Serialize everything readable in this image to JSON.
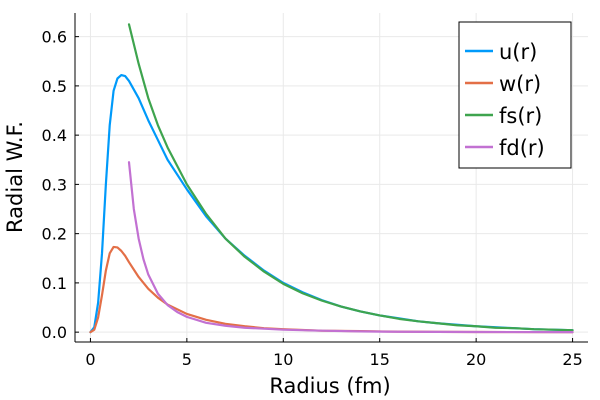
{
  "chart_data": {
    "type": "line",
    "title": "",
    "xlabel": "Radius (fm)",
    "ylabel": "Radial W.F.",
    "xlim": [
      -0.8,
      25.8
    ],
    "ylim": [
      -0.02,
      0.648
    ],
    "xticks": [
      0,
      5,
      10,
      15,
      20,
      25
    ],
    "xtick_labels": [
      "0",
      "5",
      "10",
      "15",
      "20",
      "25"
    ],
    "yticks": [
      0.0,
      0.1,
      0.2,
      0.3,
      0.4,
      0.5,
      0.6
    ],
    "ytick_labels": [
      "0.0",
      "0.1",
      "0.2",
      "0.3",
      "0.4",
      "0.5",
      "0.6"
    ],
    "grid": true,
    "legend_position": "top-right",
    "series": [
      {
        "name": "u(r)",
        "color": "#009AFA",
        "x": [
          0,
          0.2,
          0.4,
          0.6,
          0.8,
          1.0,
          1.2,
          1.4,
          1.6,
          1.8,
          2.0,
          2.5,
          3,
          3.5,
          4,
          5,
          6,
          7,
          8,
          9,
          10,
          11,
          12,
          13,
          14,
          15,
          16,
          17,
          18,
          19,
          20,
          21,
          22,
          23,
          24,
          25
        ],
        "y": [
          0,
          0.01,
          0.06,
          0.16,
          0.3,
          0.42,
          0.49,
          0.515,
          0.522,
          0.52,
          0.51,
          0.475,
          0.43,
          0.39,
          0.35,
          0.29,
          0.235,
          0.19,
          0.155,
          0.125,
          0.1,
          0.081,
          0.065,
          0.052,
          0.042,
          0.034,
          0.028,
          0.022,
          0.018,
          0.015,
          0.012,
          0.01,
          0.008,
          0.006,
          0.005,
          0.004
        ]
      },
      {
        "name": "w(r)",
        "color": "#E36F47",
        "x": [
          0,
          0.2,
          0.4,
          0.6,
          0.8,
          1.0,
          1.2,
          1.4,
          1.6,
          1.8,
          2.0,
          2.5,
          3,
          3.5,
          4,
          5,
          6,
          7,
          8,
          9,
          10,
          12,
          14,
          16,
          18,
          20,
          22,
          25
        ],
        "y": [
          0,
          0.005,
          0.03,
          0.075,
          0.125,
          0.16,
          0.173,
          0.172,
          0.165,
          0.155,
          0.142,
          0.112,
          0.088,
          0.07,
          0.056,
          0.037,
          0.025,
          0.017,
          0.012,
          0.008,
          0.006,
          0.003,
          0.002,
          0.001,
          0.0005,
          0.0003,
          0.0002,
          0.0001
        ]
      },
      {
        "name": "fs(r)",
        "color": "#3EA44E",
        "x": [
          2,
          2.5,
          3,
          3.5,
          4,
          5,
          6,
          7,
          8,
          9,
          10,
          11,
          12,
          13,
          14,
          15,
          16,
          17,
          18,
          19,
          20,
          21,
          22,
          23,
          24,
          25
        ],
        "y": [
          0.625,
          0.545,
          0.475,
          0.42,
          0.375,
          0.3,
          0.24,
          0.19,
          0.153,
          0.123,
          0.098,
          0.079,
          0.064,
          0.052,
          0.042,
          0.034,
          0.027,
          0.022,
          0.018,
          0.014,
          0.012,
          0.009,
          0.008,
          0.006,
          0.005,
          0.004
        ]
      },
      {
        "name": "fd(r)",
        "color": "#C271D2",
        "x": [
          2,
          2.25,
          2.5,
          2.75,
          3,
          3.5,
          4,
          4.5,
          5,
          6,
          7,
          8,
          9,
          10,
          12,
          14,
          16,
          18,
          20,
          22,
          25
        ],
        "y": [
          0.345,
          0.25,
          0.19,
          0.148,
          0.117,
          0.078,
          0.055,
          0.041,
          0.031,
          0.019,
          0.013,
          0.009,
          0.007,
          0.005,
          0.003,
          0.0015,
          0.0008,
          0.0005,
          0.0003,
          0.0002,
          0.0001
        ]
      }
    ]
  }
}
